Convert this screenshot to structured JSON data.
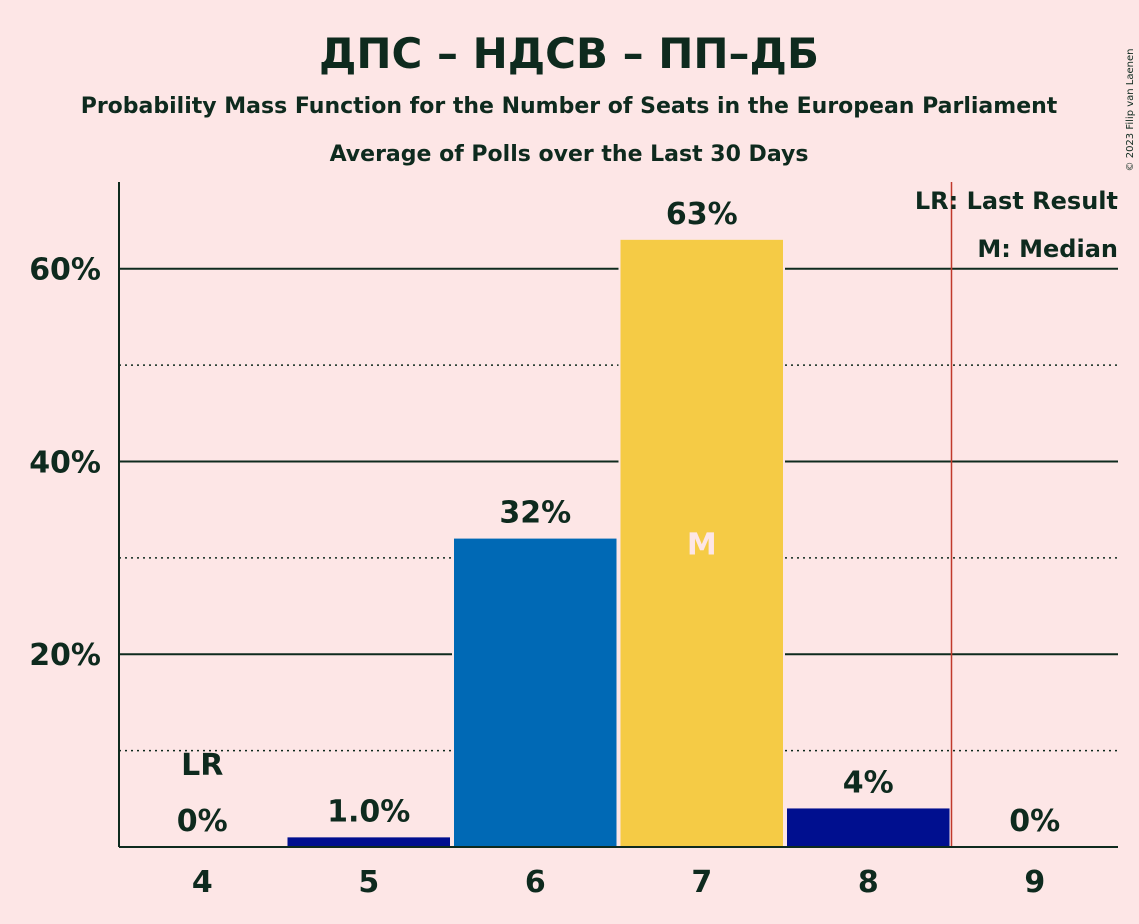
{
  "chart_data": {
    "type": "bar",
    "title": "ДПС – НДСВ – ПП–ДБ",
    "subtitle": "Probability Mass Function for the Number of Seats in the European Parliament",
    "subtitle2": "Average of Polls over the Last 30 Days",
    "categories": [
      "4",
      "5",
      "6",
      "7",
      "8",
      "9"
    ],
    "values": [
      0,
      1.0,
      32,
      63,
      4,
      0
    ],
    "value_labels": [
      "0%",
      "1.0%",
      "32%",
      "63%",
      "4%",
      "0%"
    ],
    "bar_colors": [
      "#000F8F",
      "#000F8F",
      "#0069B5",
      "#F5CB45",
      "#000F8F",
      "#000F8F"
    ],
    "ylim": [
      0,
      69
    ],
    "yticks": [
      {
        "value": 20,
        "label": "20%"
      },
      {
        "value": 40,
        "label": "40%"
      },
      {
        "value": 60,
        "label": "60%"
      }
    ],
    "minor_gridlines": [
      10,
      30,
      50
    ],
    "last_result": {
      "category": "4",
      "label": "LR",
      "line_after": "8",
      "line_color": "#C0392B"
    },
    "median": {
      "category": "7",
      "label": "M"
    },
    "legend": [
      "LR: Last Result",
      "M: Median"
    ],
    "legend_position": "top-right",
    "grid": true
  },
  "copyright": "© 2023 Filip van Laenen"
}
